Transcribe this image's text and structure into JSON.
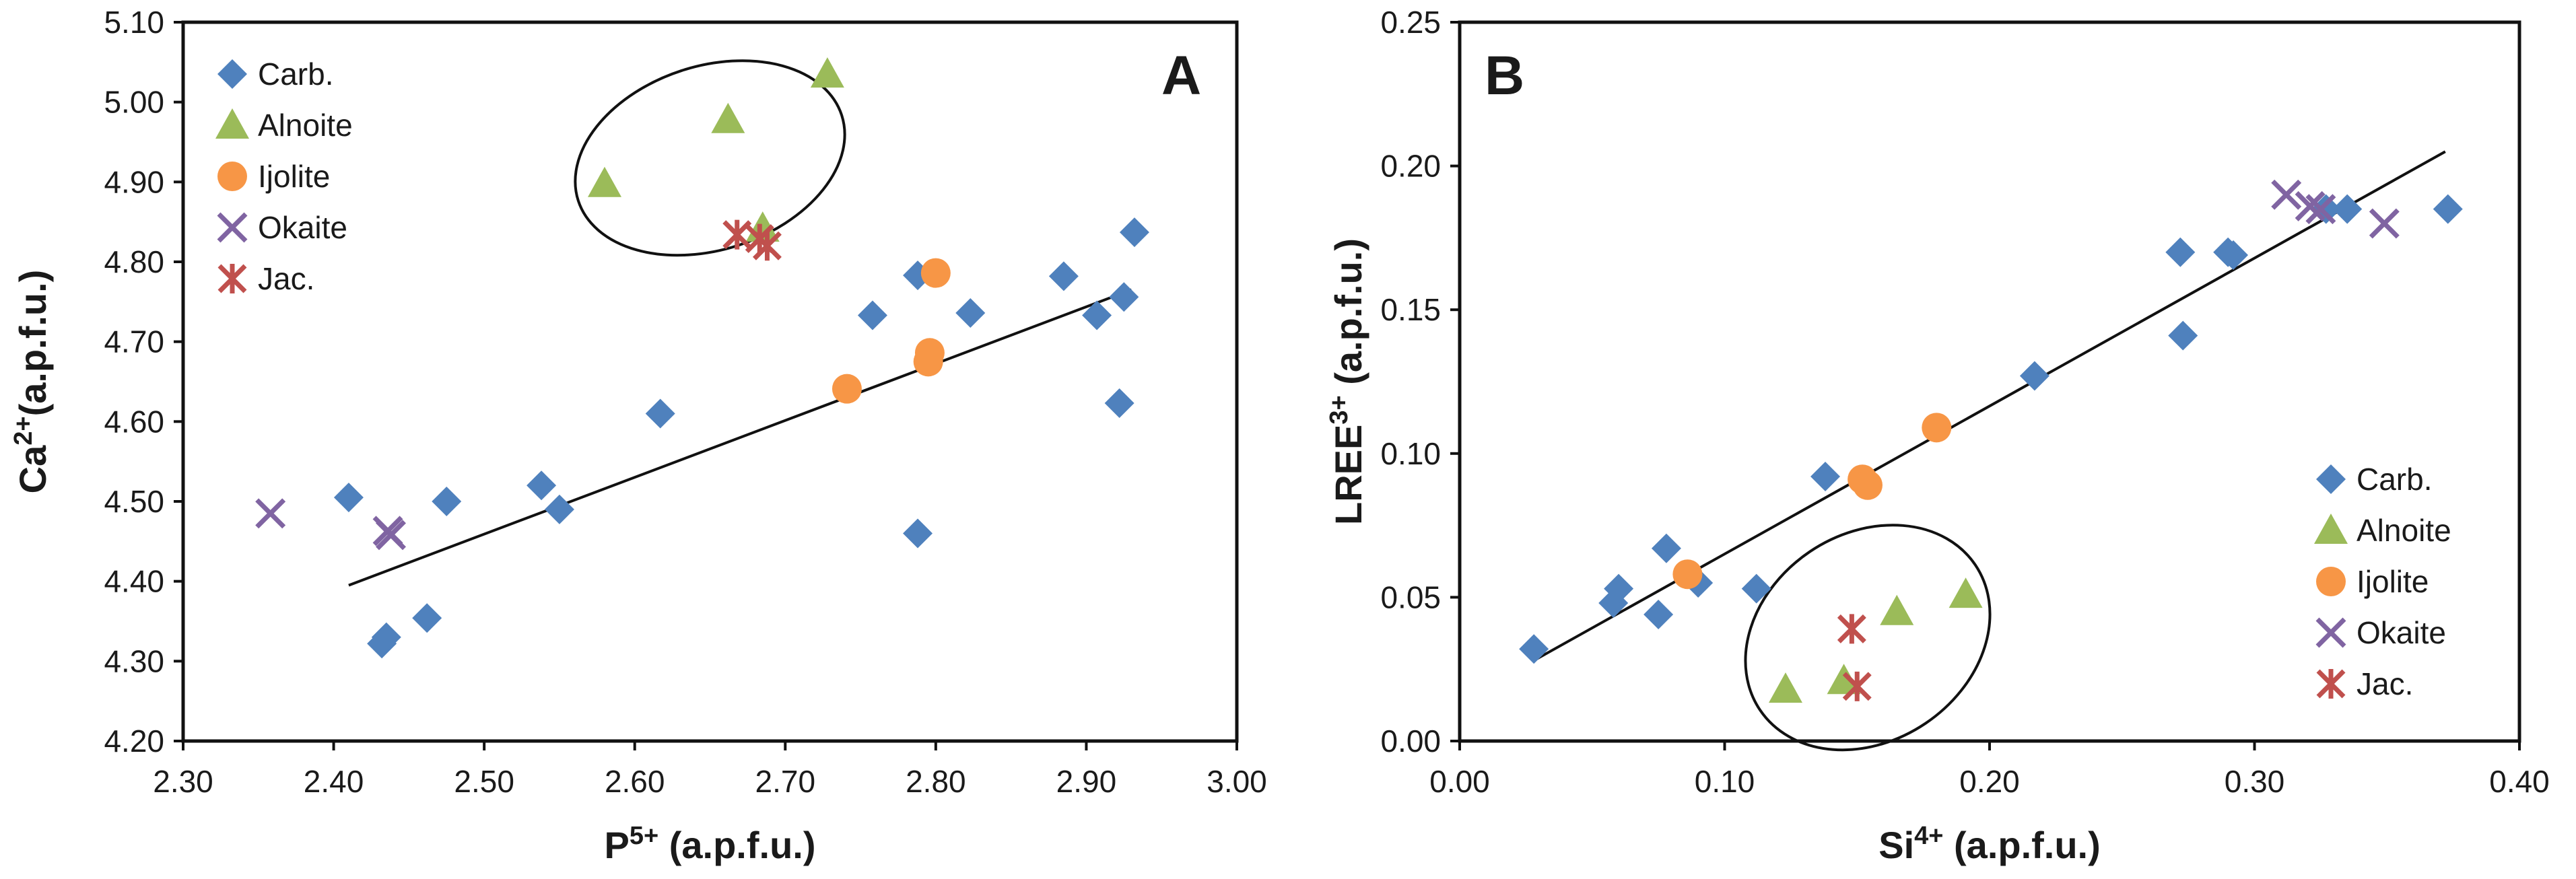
{
  "chart_data": [
    {
      "type": "scatter",
      "panel_label": "A",
      "xlabel": {
        "base": "P",
        "sup": "5+",
        "unit": " (a.p.f.u.)"
      },
      "ylabel": {
        "base": "Ca",
        "sup": "2+",
        "unit": "(a.p.f.u.)"
      },
      "xlim": [
        2.3,
        3.0
      ],
      "ylim": [
        4.2,
        5.1
      ],
      "x_ticks": [
        "2.30",
        "2.40",
        "2.50",
        "2.60",
        "2.70",
        "2.80",
        "2.90",
        "3.00"
      ],
      "y_ticks": [
        "4.20",
        "4.30",
        "4.40",
        "4.50",
        "4.60",
        "4.70",
        "4.80",
        "4.90",
        "5.00",
        "5.10"
      ],
      "legend_position": "top-left",
      "series": [
        {
          "name": "Carb.",
          "marker": "diamond",
          "color": "#4F81BD",
          "points": [
            [
              2.41,
              4.505
            ],
            [
              2.432,
              4.322
            ],
            [
              2.435,
              4.33
            ],
            [
              2.462,
              4.354
            ],
            [
              2.475,
              4.5
            ],
            [
              2.538,
              4.52
            ],
            [
              2.55,
              4.49
            ],
            [
              2.617,
              4.61
            ],
            [
              2.758,
              4.733
            ],
            [
              2.788,
              4.783
            ],
            [
              2.788,
              4.46
            ],
            [
              2.823,
              4.736
            ],
            [
              2.885,
              4.782
            ],
            [
              2.907,
              4.733
            ],
            [
              2.922,
              4.623
            ],
            [
              2.925,
              4.756
            ],
            [
              2.932,
              4.837
            ]
          ]
        },
        {
          "name": "Alnoite",
          "marker": "triangle",
          "color": "#9BBB59",
          "points": [
            [
              2.58,
              4.898
            ],
            [
              2.662,
              4.978
            ],
            [
              2.685,
              4.842
            ],
            [
              2.728,
              5.035
            ]
          ]
        },
        {
          "name": "Ijolite",
          "marker": "circle",
          "color": "#F79646",
          "points": [
            [
              2.741,
              4.641
            ],
            [
              2.795,
              4.675
            ],
            [
              2.796,
              4.686
            ],
            [
              2.8,
              4.786
            ]
          ]
        },
        {
          "name": "Okaite",
          "marker": "x",
          "color": "#8064A2",
          "points": [
            [
              2.358,
              4.485
            ],
            [
              2.436,
              4.463
            ],
            [
              2.438,
              4.458
            ]
          ]
        },
        {
          "name": "Jac.",
          "marker": "star",
          "color": "#C0504D",
          "points": [
            [
              2.668,
              4.834
            ],
            [
              2.683,
              4.829
            ],
            [
              2.688,
              4.82
            ]
          ]
        }
      ],
      "trendline": {
        "x": [
          2.41,
          2.93
        ],
        "y": [
          4.395,
          4.765
        ]
      },
      "ellipse": {
        "cx": 2.65,
        "cy": 4.93,
        "rx": 0.092,
        "ry": 0.115,
        "angle_deg": -18
      }
    },
    {
      "type": "scatter",
      "panel_label": "B",
      "xlabel": {
        "base": "Si",
        "sup": "4+",
        "unit": " (a.p.f.u.)"
      },
      "ylabel": {
        "base": "LREE",
        "sup": "3+",
        "unit": " (a.p.f.u.)"
      },
      "xlim": [
        0.0,
        0.4
      ],
      "ylim": [
        0.0,
        0.25
      ],
      "x_ticks": [
        "0.00",
        "0.10",
        "0.20",
        "0.30",
        "0.40"
      ],
      "y_ticks": [
        "0.00",
        "0.05",
        "0.10",
        "0.15",
        "0.20",
        "0.25"
      ],
      "legend_position": "bottom-right",
      "series": [
        {
          "name": "Carb.",
          "marker": "diamond",
          "color": "#4F81BD",
          "points": [
            [
              0.028,
              0.032
            ],
            [
              0.058,
              0.048
            ],
            [
              0.06,
              0.053
            ],
            [
              0.075,
              0.044
            ],
            [
              0.078,
              0.067
            ],
            [
              0.09,
              0.055
            ],
            [
              0.112,
              0.053
            ],
            [
              0.138,
              0.092
            ],
            [
              0.217,
              0.127
            ],
            [
              0.272,
              0.17
            ],
            [
              0.273,
              0.141
            ],
            [
              0.29,
              0.17
            ],
            [
              0.292,
              0.169
            ],
            [
              0.327,
              0.185
            ],
            [
              0.335,
              0.185
            ],
            [
              0.373,
              0.185
            ]
          ]
        },
        {
          "name": "Alnoite",
          "marker": "triangle",
          "color": "#9BBB59",
          "points": [
            [
              0.123,
              0.018
            ],
            [
              0.145,
              0.021
            ],
            [
              0.165,
              0.045
            ],
            [
              0.191,
              0.051
            ]
          ]
        },
        {
          "name": "Ijolite",
          "marker": "circle",
          "color": "#F79646",
          "points": [
            [
              0.086,
              0.058
            ],
            [
              0.152,
              0.091
            ],
            [
              0.154,
              0.089
            ],
            [
              0.18,
              0.109
            ]
          ]
        },
        {
          "name": "Okaite",
          "marker": "x",
          "color": "#8064A2",
          "points": [
            [
              0.312,
              0.19
            ],
            [
              0.321,
              0.186
            ],
            [
              0.325,
              0.185
            ],
            [
              0.349,
              0.18
            ]
          ]
        },
        {
          "name": "Jac.",
          "marker": "star",
          "color": "#C0504D",
          "points": [
            [
              0.148,
              0.039
            ],
            [
              0.15,
              0.019
            ]
          ]
        }
      ],
      "trendline": {
        "x": [
          0.028,
          0.372
        ],
        "y": [
          0.028,
          0.205
        ]
      },
      "ellipse": {
        "cx": 0.154,
        "cy": 0.036,
        "rx": 0.049,
        "ry": 0.036,
        "angle_deg": -34
      }
    }
  ]
}
